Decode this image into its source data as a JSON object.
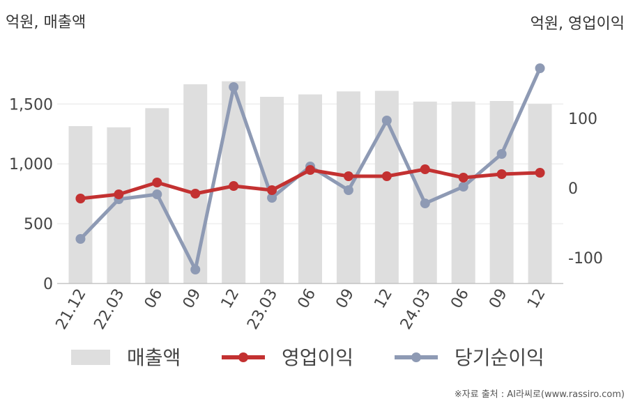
{
  "chart_data": {
    "type": "bar",
    "left_axis_label": "억원, 매출액",
    "right_axis_label": "억원, 영업이익",
    "categories": [
      "21.12",
      "22.03",
      "06",
      "09",
      "12",
      "23.03",
      "06",
      "09",
      "12",
      "24.03",
      "06",
      "09",
      "12"
    ],
    "series": [
      {
        "name": "매출액",
        "type": "bar",
        "axis": "left",
        "color": "#dedede",
        "values": [
          1315,
          1305,
          1465,
          1665,
          1690,
          1560,
          1580,
          1605,
          1610,
          1520,
          1520,
          1525,
          1500
        ]
      },
      {
        "name": "영업이익",
        "type": "line",
        "axis": "right",
        "color": "#c33131",
        "values": [
          -15,
          -9,
          8,
          -8,
          3,
          -3,
          26,
          17,
          17,
          27,
          15,
          20,
          22
        ]
      },
      {
        "name": "당기순이익",
        "type": "line",
        "axis": "right",
        "color": "#8e9ab4",
        "values": [
          -73,
          -16,
          -9,
          -117,
          145,
          -14,
          31,
          -3,
          97,
          -22,
          2,
          49,
          172
        ]
      }
    ],
    "left_axis": {
      "min": 0,
      "max": 2000,
      "ticks": [
        0,
        500,
        1000,
        1500
      ]
    },
    "right_axis": {
      "min": -136,
      "max": 268,
      "ticks": [
        -100,
        0,
        100
      ]
    },
    "grid": true,
    "legend_position": "bottom"
  },
  "source_text": "※자료 출처 : AI라씨로(www.rassiro.com)"
}
